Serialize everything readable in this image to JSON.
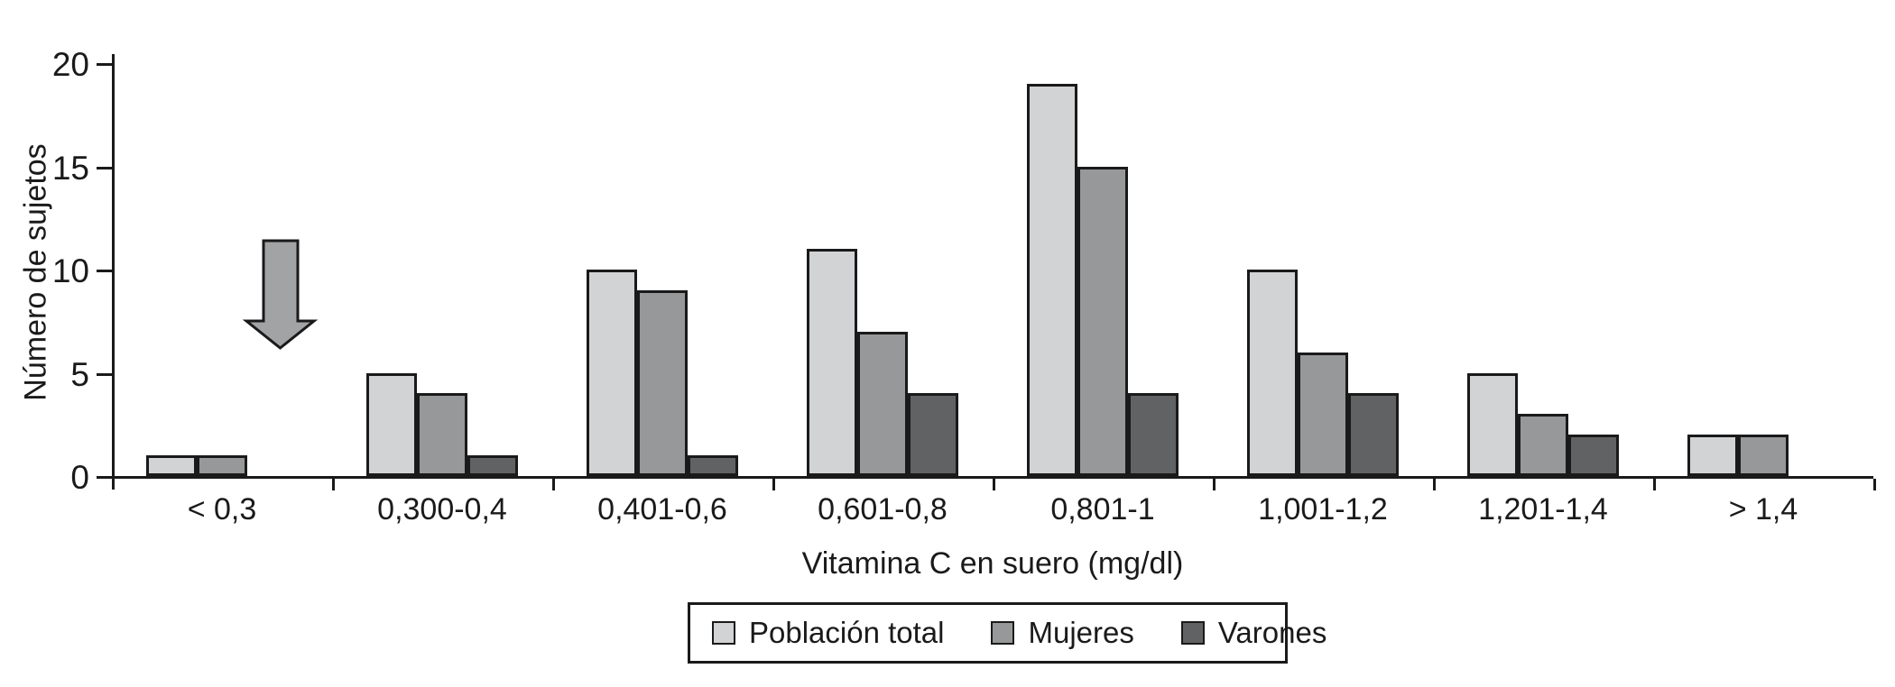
{
  "figure": {
    "background": "#ffffff",
    "axis_color": "#1a1a1a"
  },
  "chart_data": {
    "type": "bar",
    "categories": [
      "< 0,3",
      "0,300-0,4",
      "0,401-0,6",
      "0,601-0,8",
      "0,801-1",
      "1,001-1,2",
      "1,201-1,4",
      "> 1,4"
    ],
    "series": [
      {
        "name": "Población total",
        "color": "#d2d3d5",
        "values": [
          1,
          5,
          10,
          11,
          19,
          10,
          5,
          2
        ]
      },
      {
        "name": "Mujeres",
        "color": "#97989a",
        "values": [
          1,
          4,
          9,
          7,
          15,
          6,
          3,
          2
        ]
      },
      {
        "name": "Varones",
        "color": "#616263",
        "values": [
          0,
          1,
          1,
          4,
          4,
          4,
          2,
          0
        ]
      }
    ],
    "title": "",
    "xlabel": "Vitamina C en suero (mg/dl)",
    "ylabel": "Número de sujetos",
    "ylim": [
      0,
      20
    ],
    "yticks": [
      0,
      5,
      10,
      15,
      20
    ],
    "grid": false,
    "legend_position": "bottom-center",
    "bar_border_color": "#1a1a1a",
    "annotations": [
      {
        "type": "arrow",
        "direction": "down",
        "over_category": "< 0,3",
        "fill": "#a2a3a5",
        "outline": "#1a1a1a",
        "value_span": [
          11,
          6
        ]
      }
    ]
  },
  "legend": {
    "items": [
      {
        "label": "Población total",
        "color": "#d2d3d5"
      },
      {
        "label": "Mujeres",
        "color": "#97989a"
      },
      {
        "label": "Varones",
        "color": "#616263"
      }
    ]
  }
}
